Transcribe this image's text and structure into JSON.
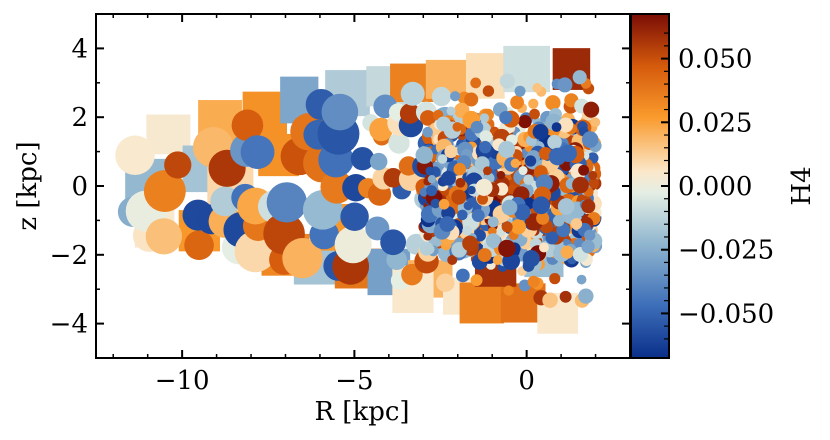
{
  "chart_data": {
    "type": "heatmap",
    "title": "",
    "xlabel": "R [kpc]",
    "ylabel": "z [kpc]",
    "xlim": [
      -12.5,
      3.0
    ],
    "ylim": [
      -5.0,
      5.0
    ],
    "xticks": [
      {
        "value": -10,
        "label": "−10"
      },
      {
        "value": -5,
        "label": "−5"
      },
      {
        "value": 0,
        "label": "0"
      }
    ],
    "yticks": [
      {
        "value": 4,
        "label": "4"
      },
      {
        "value": 2,
        "label": "2"
      },
      {
        "value": 0,
        "label": "0"
      },
      {
        "value": -2,
        "label": "−2"
      },
      {
        "value": -4,
        "label": "−4"
      }
    ],
    "colorbar": {
      "label": "H4",
      "vmin": -0.0675,
      "vmax": 0.0675,
      "colormap": [
        "#0a2f8a",
        "#3c6db8",
        "#8fb5cf",
        "#e4eee4",
        "#fbe8cc",
        "#fa9a2c",
        "#d45a0c",
        "#7a0d06"
      ],
      "ticks": [
        {
          "value": 0.05,
          "label": "0.050"
        },
        {
          "value": 0.025,
          "label": "0.025"
        },
        {
          "value": 0.0,
          "label": "0.000"
        },
        {
          "value": -0.025,
          "label": "−0.025"
        },
        {
          "value": -0.05,
          "label": "−0.050"
        }
      ]
    },
    "grid": false,
    "description_cells": [
      {
        "R": -10.4,
        "z": 1.5,
        "v": 0.004
      },
      {
        "R": -8.9,
        "z": 1.8,
        "v": 0.022
      },
      {
        "R": -7.6,
        "z": 2.1,
        "v": 0.03
      },
      {
        "R": -6.6,
        "z": 2.5,
        "v": -0.028
      },
      {
        "R": -5.2,
        "z": 2.7,
        "v": -0.015
      },
      {
        "R": -4.0,
        "z": 2.9,
        "v": -0.01
      },
      {
        "R": -3.3,
        "z": 3.0,
        "v": 0.035
      },
      {
        "R": -2.3,
        "z": 3.1,
        "v": 0.02
      },
      {
        "R": -1.2,
        "z": 3.2,
        "v": 0.008
      },
      {
        "R": 0.0,
        "z": 3.4,
        "v": -0.008
      },
      {
        "R": 1.3,
        "z": 3.4,
        "v": 0.06
      },
      {
        "R": -11.0,
        "z": 0.2,
        "v": -0.022
      },
      {
        "R": -10.8,
        "z": -1.2,
        "v": 0.004
      },
      {
        "R": -9.3,
        "z": 0.5,
        "v": -0.018
      },
      {
        "R": -9.5,
        "z": -1.3,
        "v": 0.028
      },
      {
        "R": -8.6,
        "z": 0.0,
        "v": 0.01
      },
      {
        "R": -8.0,
        "z": -1.4,
        "v": -0.008
      },
      {
        "R": -7.2,
        "z": 0.9,
        "v": 0.03
      },
      {
        "R": -7.0,
        "z": -2.0,
        "v": 0.033
      },
      {
        "R": -6.1,
        "z": -2.3,
        "v": -0.018
      },
      {
        "R": -5.6,
        "z": -1.2,
        "v": 0.028
      },
      {
        "R": -4.9,
        "z": -2.4,
        "v": 0.038
      },
      {
        "R": -4.0,
        "z": -2.5,
        "v": -0.03
      },
      {
        "R": -2.8,
        "z": -2.7,
        "v": 0.02
      },
      {
        "R": -1.8,
        "z": -3.2,
        "v": 0.005
      },
      {
        "R": -1.3,
        "z": -3.4,
        "v": 0.035
      },
      {
        "R": -0.1,
        "z": -3.4,
        "v": 0.04
      },
      {
        "R": 0.9,
        "z": -3.7,
        "v": 0.005
      },
      {
        "R": -3.3,
        "z": -3.0,
        "v": 0.005
      },
      {
        "R": -0.9,
        "z": -2.4,
        "v": 0.058
      },
      {
        "R": 0.5,
        "z": -2.1,
        "v": -0.02
      }
    ]
  }
}
